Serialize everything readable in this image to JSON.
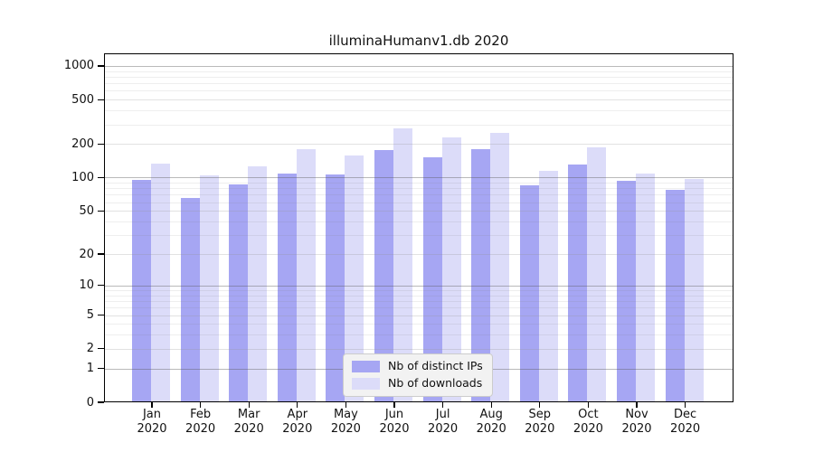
{
  "title": "illuminaHumanv1.db 2020",
  "legend": {
    "items": [
      {
        "label": "Nb of distinct IPs",
        "color": "#a6a6f3"
      },
      {
        "label": "Nb of downloads",
        "color": "#dcdcf9"
      }
    ],
    "position": "bottom-center"
  },
  "chart_data": {
    "type": "bar",
    "title": "illuminaHumanv1.db 2020",
    "categories": [
      "Jan 2020",
      "Feb 2020",
      "Mar 2020",
      "Apr 2020",
      "May 2020",
      "Jun 2020",
      "Jul 2020",
      "Aug 2020",
      "Sep 2020",
      "Oct 2020",
      "Nov 2020",
      "Dec 2020"
    ],
    "series": [
      {
        "name": "Nb of distinct IPs",
        "color": "#a6a6f3",
        "values": [
          95,
          66,
          87,
          108,
          106,
          176,
          152,
          180,
          86,
          130,
          94,
          77
        ]
      },
      {
        "name": "Nb of downloads",
        "color": "#dcdcf9",
        "values": [
          133,
          105,
          127,
          179,
          157,
          279,
          231,
          251,
          116,
          186,
          108,
          98
        ]
      }
    ],
    "xlabel": "",
    "ylabel": "",
    "yscale": "pseudo-log: position = log10(1 + y)",
    "yticks": [
      0,
      1,
      2,
      5,
      10,
      20,
      50,
      100,
      200,
      500,
      1000
    ],
    "ylim": [
      0,
      1000
    ],
    "grid": "horizontal, darker lines at powers of 10, faint minor lines",
    "legend_position": "bottom-center inside plot"
  }
}
